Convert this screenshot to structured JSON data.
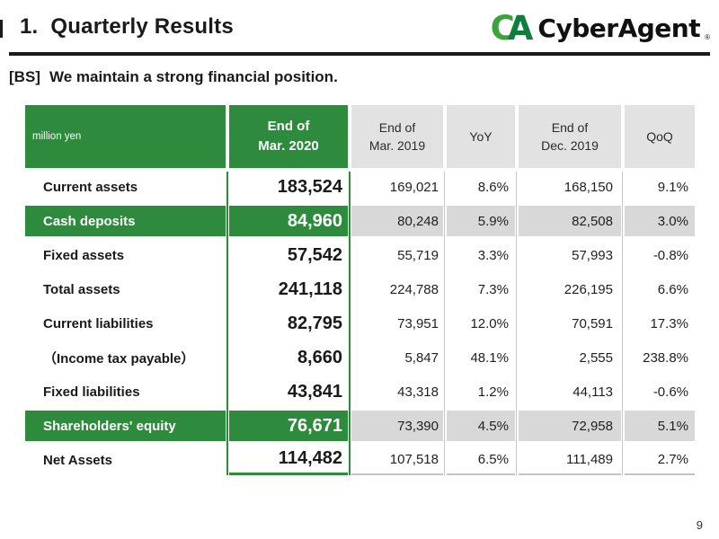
{
  "page": {
    "title_number": "1.",
    "title_text": "Quarterly Results",
    "subtitle_tag": "[BS]",
    "subtitle_text": "We maintain a strong financial position.",
    "page_number": "9"
  },
  "logo": {
    "mark_c": "C",
    "mark_a": "A",
    "text": "CyberAgent",
    "registered": "®"
  },
  "colors": {
    "brand_green": "#2e8b3d",
    "header_gray": "#e2e2e2",
    "highlight_row_gray": "#d8d8d8",
    "separator_gray": "#c9c9c9",
    "logo_c_green": "#3ca33c",
    "logo_a_green": "#0d7e3e"
  },
  "table": {
    "unit_label": "million yen",
    "header": {
      "col_main": "End of\nMar. 2020",
      "col_prev_year": "End of\nMar. 2019",
      "col_yoy": "YoY",
      "col_prev_q": "End of\nDec. 2019",
      "col_qoq": "QoQ"
    },
    "rows": [
      {
        "label": "Current assets",
        "mar2020": "183,524",
        "mar2019": "169,021",
        "yoy": "8.6%",
        "dec2019": "168,150",
        "qoq": "9.1%",
        "highlight": false
      },
      {
        "label": "Cash deposits",
        "mar2020": "84,960",
        "mar2019": "80,248",
        "yoy": "5.9%",
        "dec2019": "82,508",
        "qoq": "3.0%",
        "highlight": true
      },
      {
        "label": "Fixed assets",
        "mar2020": "57,542",
        "mar2019": "55,719",
        "yoy": "3.3%",
        "dec2019": "57,993",
        "qoq": "-0.8%",
        "highlight": false
      },
      {
        "label": "Total assets",
        "mar2020": "241,118",
        "mar2019": "224,788",
        "yoy": "7.3%",
        "dec2019": "226,195",
        "qoq": "6.6%",
        "highlight": false
      },
      {
        "label": "Current liabilities",
        "mar2020": "82,795",
        "mar2019": "73,951",
        "yoy": "12.0%",
        "dec2019": "70,591",
        "qoq": "17.3%",
        "highlight": false
      },
      {
        "label": "（Income tax payable）",
        "mar2020": "8,660",
        "mar2019": "5,847",
        "yoy": "48.1%",
        "dec2019": "2,555",
        "qoq": "238.8%",
        "highlight": false
      },
      {
        "label": "Fixed liabilities",
        "mar2020": "43,841",
        "mar2019": "43,318",
        "yoy": "1.2%",
        "dec2019": "44,113",
        "qoq": "-0.6%",
        "highlight": false
      },
      {
        "label": "Shareholders' equity",
        "mar2020": "76,671",
        "mar2019": "73,390",
        "yoy": "4.5%",
        "dec2019": "72,958",
        "qoq": "5.1%",
        "highlight": true
      },
      {
        "label": "Net Assets",
        "mar2020": "114,482",
        "mar2019": "107,518",
        "yoy": "6.5%",
        "dec2019": "111,489",
        "qoq": "2.7%",
        "highlight": false
      }
    ]
  }
}
